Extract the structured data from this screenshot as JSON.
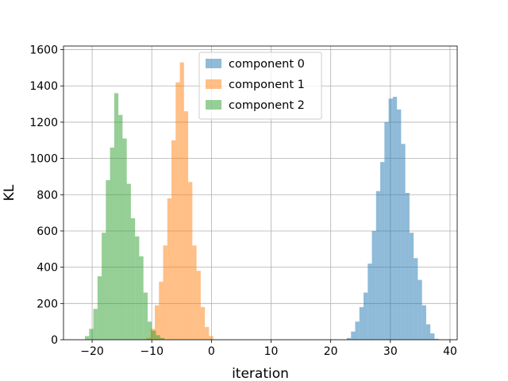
{
  "chart_data": {
    "type": "bar",
    "subtype": "histogram",
    "title": "",
    "xlabel": "iteration",
    "ylabel": "KL",
    "xlim": [
      -24.8,
      41.2
    ],
    "ylim": [
      0,
      1620
    ],
    "grid": true,
    "legend_position": "top-center",
    "x_ticks": [
      -20,
      -10,
      0,
      10,
      20,
      30,
      40
    ],
    "y_ticks": [
      0,
      200,
      400,
      600,
      800,
      1000,
      1200,
      1400,
      1600
    ],
    "x_tick_labels": [
      "−20",
      "−10",
      "0",
      "10",
      "20",
      "30",
      "40"
    ],
    "y_tick_labels": [
      "0",
      "200",
      "400",
      "600",
      "800",
      "1000",
      "1200",
      "1400",
      "1600"
    ],
    "bin_width": 0.7,
    "series": [
      {
        "name": "component 0",
        "color": "#1f77b4",
        "alpha": 0.5,
        "bin_start": 22.7,
        "counts": [
          10,
          45,
          100,
          180,
          260,
          420,
          600,
          820,
          980,
          1200,
          1330,
          1340,
          1270,
          1080,
          810,
          590,
          450,
          330,
          190,
          85,
          35,
          5
        ]
      },
      {
        "name": "component 1",
        "color": "#ff7f0e",
        "alpha": 0.5,
        "bin_start": -10.9,
        "counts": [
          10,
          60,
          190,
          320,
          520,
          780,
          1100,
          1420,
          1530,
          1260,
          870,
          520,
          380,
          180,
          70,
          20
        ]
      },
      {
        "name": "component 2",
        "color": "#2ca02c",
        "alpha": 0.5,
        "bin_start": -21.2,
        "counts": [
          20,
          60,
          170,
          350,
          590,
          880,
          1060,
          1360,
          1240,
          1110,
          860,
          670,
          570,
          460,
          260,
          100,
          50,
          25,
          10
        ]
      }
    ]
  }
}
